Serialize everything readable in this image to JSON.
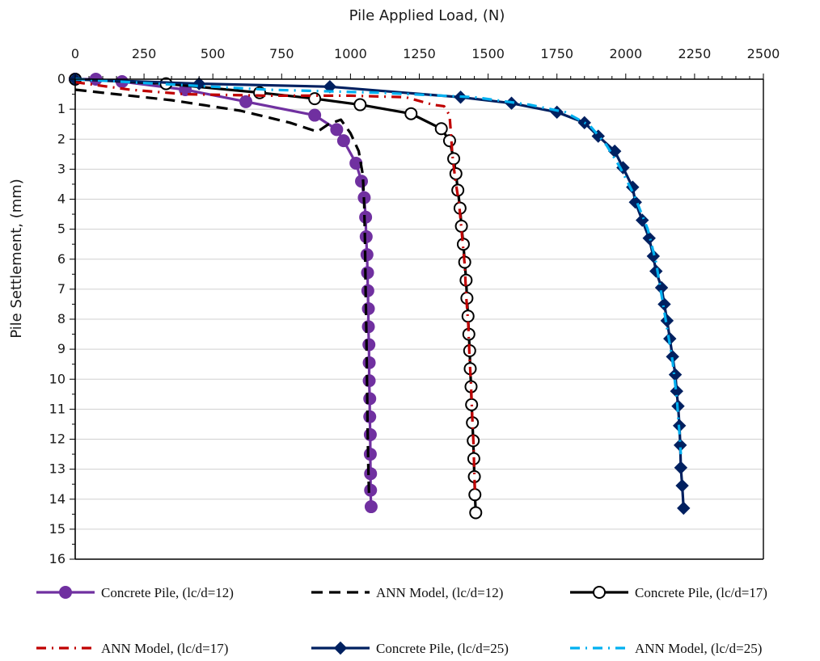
{
  "chart_data": {
    "type": "line",
    "title": "",
    "xlabel": "Pile Applied Load, (N)",
    "ylabel": "Pile Settlement, (mm)",
    "x_axis_position": "top",
    "y_axis_inverted": true,
    "xlim": [
      0,
      2500
    ],
    "ylim": [
      0,
      16
    ],
    "x_ticks": [
      "0",
      "250",
      "500",
      "750",
      "1000",
      "1250",
      "1500",
      "1750",
      "2000",
      "2250",
      "2500"
    ],
    "y_ticks": [
      "0",
      "1",
      "2",
      "3",
      "4",
      "5",
      "6",
      "7",
      "8",
      "9",
      "10",
      "11",
      "12",
      "13",
      "14",
      "15",
      "16"
    ],
    "grid": "horizontal major gridlines",
    "legend_position": "bottom",
    "series": [
      {
        "name": "Concrete Pile, (lc/d=12)",
        "color": "#7030a0",
        "line": "solid",
        "marker": "filled-circle",
        "points": [
          [
            0,
            0
          ],
          [
            75,
            0
          ],
          [
            170,
            0.08
          ],
          [
            400,
            0.35
          ],
          [
            620,
            0.75
          ],
          [
            870,
            1.2
          ],
          [
            950,
            1.68
          ],
          [
            975,
            2.05
          ],
          [
            1020,
            2.8
          ],
          [
            1040,
            3.4
          ],
          [
            1050,
            3.95
          ],
          [
            1055,
            4.6
          ],
          [
            1057,
            5.25
          ],
          [
            1060,
            5.85
          ],
          [
            1062,
            6.45
          ],
          [
            1063,
            7.05
          ],
          [
            1065,
            7.65
          ],
          [
            1065,
            8.25
          ],
          [
            1067,
            8.85
          ],
          [
            1068,
            9.45
          ],
          [
            1068,
            10.05
          ],
          [
            1070,
            10.65
          ],
          [
            1070,
            11.25
          ],
          [
            1072,
            11.85
          ],
          [
            1072,
            12.5
          ],
          [
            1073,
            13.15
          ],
          [
            1073,
            13.7
          ],
          [
            1075,
            14.25
          ]
        ]
      },
      {
        "name": "ANN Model, (lc/d=12)",
        "color": "#000000",
        "line": "dashed",
        "marker": "none",
        "points": [
          [
            0,
            0.35
          ],
          [
            150,
            0.5
          ],
          [
            350,
            0.7
          ],
          [
            600,
            1.05
          ],
          [
            780,
            1.45
          ],
          [
            880,
            1.75
          ],
          [
            920,
            1.5
          ],
          [
            965,
            1.35
          ],
          [
            1000,
            1.8
          ],
          [
            1030,
            2.4
          ],
          [
            1045,
            3.2
          ],
          [
            1050,
            4.2
          ],
          [
            1053,
            5.5
          ],
          [
            1055,
            7.0
          ],
          [
            1058,
            8.5
          ],
          [
            1060,
            10.0
          ],
          [
            1062,
            11.5
          ],
          [
            1065,
            13.0
          ],
          [
            1068,
            14.0
          ]
        ]
      },
      {
        "name": "Concrete Pile, (lc/d=17)",
        "color": "#000000",
        "line": "solid",
        "marker": "open-circle",
        "points": [
          [
            0,
            0
          ],
          [
            330,
            0.15
          ],
          [
            670,
            0.45
          ],
          [
            870,
            0.65
          ],
          [
            1035,
            0.85
          ],
          [
            1220,
            1.15
          ],
          [
            1330,
            1.65
          ],
          [
            1360,
            2.05
          ],
          [
            1375,
            2.65
          ],
          [
            1383,
            3.15
          ],
          [
            1390,
            3.7
          ],
          [
            1398,
            4.3
          ],
          [
            1403,
            4.9
          ],
          [
            1410,
            5.5
          ],
          [
            1415,
            6.1
          ],
          [
            1420,
            6.7
          ],
          [
            1423,
            7.3
          ],
          [
            1427,
            7.9
          ],
          [
            1430,
            8.5
          ],
          [
            1433,
            9.05
          ],
          [
            1435,
            9.65
          ],
          [
            1438,
            10.25
          ],
          [
            1440,
            10.85
          ],
          [
            1443,
            11.45
          ],
          [
            1446,
            12.05
          ],
          [
            1448,
            12.65
          ],
          [
            1450,
            13.25
          ],
          [
            1452,
            13.85
          ],
          [
            1455,
            14.45
          ]
        ]
      },
      {
        "name": "ANN Model, (lc/d=17)",
        "color": "#c00000",
        "line": "dash-dot",
        "marker": "none",
        "points": [
          [
            0,
            0.1
          ],
          [
            200,
            0.35
          ],
          [
            400,
            0.5
          ],
          [
            700,
            0.55
          ],
          [
            1000,
            0.55
          ],
          [
            1200,
            0.6
          ],
          [
            1300,
            0.85
          ],
          [
            1340,
            0.9
          ],
          [
            1360,
            1.2
          ],
          [
            1365,
            1.8
          ],
          [
            1370,
            2.5
          ],
          [
            1380,
            3.3
          ],
          [
            1395,
            4.2
          ],
          [
            1405,
            5.2
          ],
          [
            1415,
            6.2
          ],
          [
            1420,
            7.2
          ],
          [
            1428,
            8.2
          ],
          [
            1432,
            9.2
          ],
          [
            1438,
            10.2
          ],
          [
            1442,
            11.2
          ],
          [
            1447,
            12.2
          ],
          [
            1450,
            13.2
          ],
          [
            1452,
            13.7
          ]
        ]
      },
      {
        "name": "Concrete Pile, (lc/d=25)",
        "color": "#002060",
        "line": "solid",
        "marker": "filled-diamond",
        "points": [
          [
            0,
            0
          ],
          [
            450,
            0.15
          ],
          [
            925,
            0.25
          ],
          [
            1400,
            0.6
          ],
          [
            1585,
            0.8
          ],
          [
            1750,
            1.1
          ],
          [
            1850,
            1.45
          ],
          [
            1900,
            1.9
          ],
          [
            1960,
            2.4
          ],
          [
            1990,
            2.95
          ],
          [
            2025,
            3.6
          ],
          [
            2035,
            4.1
          ],
          [
            2060,
            4.7
          ],
          [
            2085,
            5.3
          ],
          [
            2100,
            5.9
          ],
          [
            2110,
            6.4
          ],
          [
            2130,
            6.95
          ],
          [
            2140,
            7.5
          ],
          [
            2150,
            8.05
          ],
          [
            2160,
            8.65
          ],
          [
            2170,
            9.25
          ],
          [
            2180,
            9.85
          ],
          [
            2185,
            10.4
          ],
          [
            2190,
            10.9
          ],
          [
            2195,
            11.55
          ],
          [
            2198,
            12.2
          ],
          [
            2200,
            12.95
          ],
          [
            2205,
            13.55
          ],
          [
            2210,
            14.3
          ]
        ]
      },
      {
        "name": "ANN Model, (lc/d=25)",
        "color": "#00b0f0",
        "line": "dash-dot",
        "marker": "none",
        "points": [
          [
            0,
            0
          ],
          [
            300,
            0.15
          ],
          [
            700,
            0.35
          ],
          [
            1100,
            0.45
          ],
          [
            1450,
            0.6
          ],
          [
            1650,
            0.85
          ],
          [
            1780,
            1.1
          ],
          [
            1870,
            1.55
          ],
          [
            1930,
            2.2
          ],
          [
            1980,
            2.95
          ],
          [
            2030,
            3.85
          ],
          [
            2080,
            5.0
          ],
          [
            2110,
            6.1
          ],
          [
            2130,
            7.2
          ],
          [
            2150,
            8.3
          ],
          [
            2170,
            9.4
          ],
          [
            2185,
            10.6
          ],
          [
            2195,
            11.8
          ],
          [
            2200,
            12.5
          ]
        ]
      }
    ]
  }
}
